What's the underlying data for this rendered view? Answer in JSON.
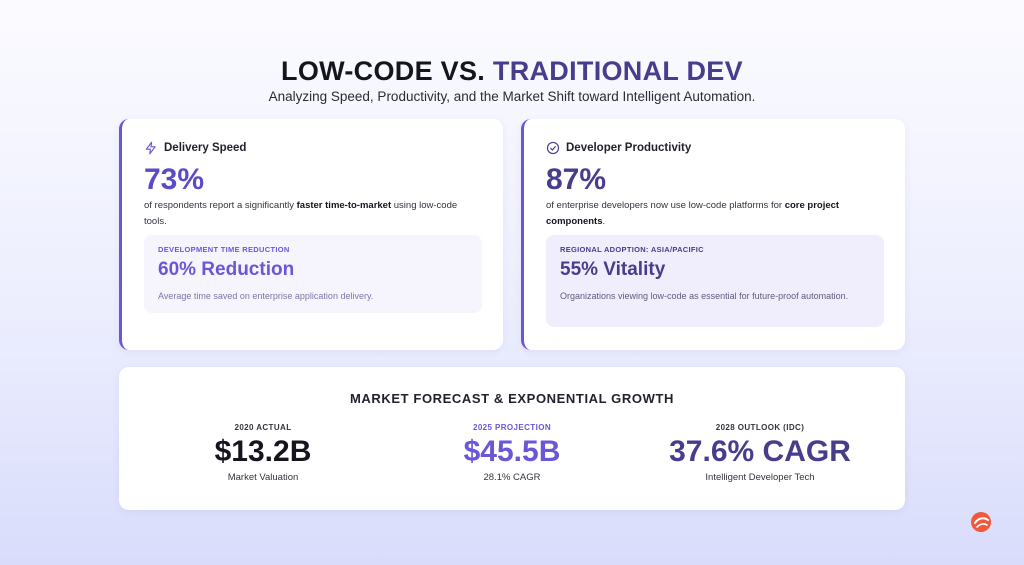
{
  "header": {
    "title_main": "LOW-CODE VS.",
    "title_accent": "TRADITIONAL DEV",
    "subtitle": "Analyzing Speed, Productivity, and the Market Shift toward Intelligent Automation."
  },
  "cards": [
    {
      "label": "Delivery Speed",
      "stat": "73%",
      "text_before": "of respondents report a significantly",
      "text_bold": "faster time-to-market",
      "text_after": "using low-code tools.",
      "callout": {
        "label": "DEVELOPMENT TIME REDUCTION",
        "value": "60% Reduction",
        "note": "Average time saved on enterprise application delivery."
      }
    },
    {
      "label": "Developer Productivity",
      "stat": "87%",
      "text_before": "of enterprise developers now use low-code platforms for",
      "text_bold": "core project components",
      "text_after": ".",
      "callout": {
        "label": "REGIONAL ADOPTION: ASIA/PACIFIC",
        "value": "55% Vitality",
        "note": "Organizations viewing low-code as essential for future-proof automation."
      }
    }
  ],
  "forecast": {
    "title": "MARKET FORECAST & EXPONENTIAL GROWTH",
    "items": [
      {
        "label": "2020 ACTUAL",
        "value": "$13.2B",
        "note": "Market Valuation"
      },
      {
        "label": "2025 PROJECTION",
        "value": "$45.5B",
        "note": "28.1% CAGR"
      },
      {
        "label": "2028 OUTLOOK (IDC)",
        "value": "37.6% CAGR",
        "note": "Intelligent Developer Tech"
      }
    ]
  }
}
